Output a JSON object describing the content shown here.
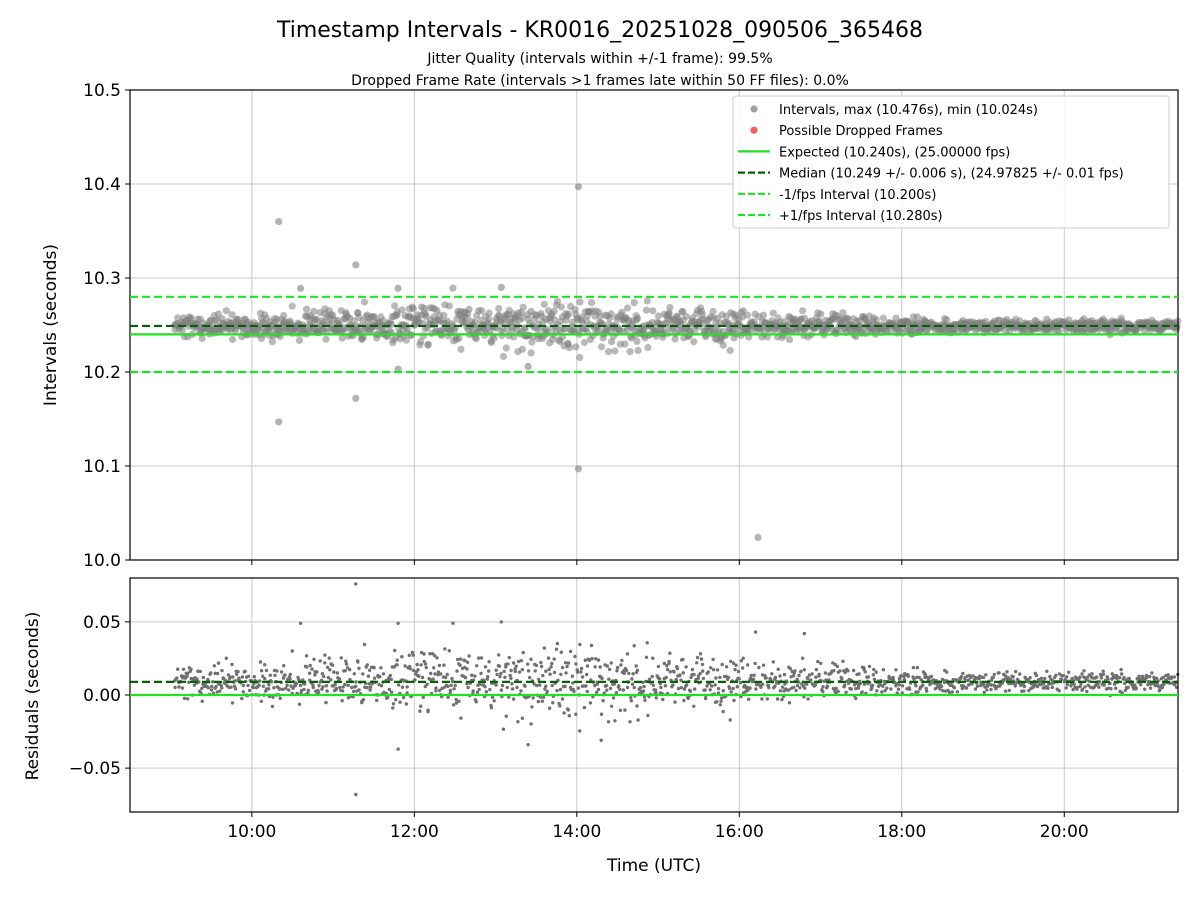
{
  "chart_data": [
    {
      "type": "scatter",
      "title": "Timestamp Intervals - KR0016_20251028_090506_365468",
      "subtitle_lines": [
        "Jitter Quality (intervals within +/-1 frame): 99.5%",
        "Dropped Frame Rate (intervals >1 frames late within 50 FF files): 0.0%"
      ],
      "xlabel": "",
      "ylabel": "Intervals (seconds)",
      "xlim_hours": [
        8.5,
        21.4
      ],
      "ylim": [
        10.0,
        10.5
      ],
      "x_ticks_hours": [
        10,
        12,
        14,
        16,
        18,
        20
      ],
      "x_tick_labels": [
        "10:00",
        "12:00",
        "14:00",
        "16:00",
        "18:00",
        "20:00"
      ],
      "y_ticks": [
        10.0,
        10.1,
        10.2,
        10.3,
        10.4,
        10.5
      ],
      "y_tick_labels": [
        "10.0",
        "10.1",
        "10.2",
        "10.3",
        "10.4",
        "10.5"
      ],
      "grid": true,
      "legend_position": "top-right",
      "data_span_hours": [
        9.05,
        21.4
      ],
      "intervals_max": 10.476,
      "intervals_min": 10.024,
      "expected_interval": 10.24,
      "expected_fps": 25.0,
      "median_interval": 10.249,
      "median_interval_err": 0.006,
      "median_fps": 24.97825,
      "lower_interval": 10.2,
      "upper_interval": 10.28,
      "colors": {
        "points": "#808080",
        "dropped": "#f04040",
        "expected": "#22e022",
        "median": "#006400",
        "bounds": "#22e022"
      },
      "outliers": [
        {
          "x": 10.33,
          "y": 10.36
        },
        {
          "x": 10.33,
          "y": 10.147
        },
        {
          "x": 11.28,
          "y": 10.314
        },
        {
          "x": 11.28,
          "y": 10.172
        },
        {
          "x": 14.02,
          "y": 10.397
        },
        {
          "x": 14.02,
          "y": 10.097
        },
        {
          "x": 16.23,
          "y": 10.024
        },
        {
          "x": 11.8,
          "y": 10.289
        },
        {
          "x": 13.07,
          "y": 10.29
        },
        {
          "x": 10.6,
          "y": 10.289
        },
        {
          "x": 11.8,
          "y": 10.203
        },
        {
          "x": 13.4,
          "y": 10.206
        }
      ],
      "legend": [
        {
          "kind": "dot",
          "color": "#a0a0a0",
          "label": "Intervals, max (10.476s), min (10.024s)"
        },
        {
          "kind": "dot",
          "color": "#f06060",
          "label": "Possible Dropped Frames"
        },
        {
          "kind": "solid",
          "color": "#22e022",
          "label": "Expected (10.240s), (25.00000 fps)"
        },
        {
          "kind": "dashed",
          "color": "#006400",
          "label": "Median (10.249 +/- 0.006 s), (24.97825 +/- 0.01 fps)"
        },
        {
          "kind": "dashed",
          "color": "#22e022",
          "label": "-1/fps Interval (10.200s)"
        },
        {
          "kind": "dashed",
          "color": "#22e022",
          "label": "+1/fps Interval (10.280s)"
        }
      ]
    },
    {
      "type": "scatter",
      "title": "",
      "xlabel": "Time (UTC)",
      "ylabel": "Residuals (seconds)",
      "xlim_hours": [
        8.5,
        21.4
      ],
      "ylim": [
        -0.08,
        0.08
      ],
      "x_ticks_hours": [
        10,
        12,
        14,
        16,
        18,
        20
      ],
      "x_tick_labels": [
        "10:00",
        "12:00",
        "14:00",
        "16:00",
        "18:00",
        "20:00"
      ],
      "y_ticks": [
        0.05,
        0.0,
        -0.05
      ],
      "y_tick_labels": [
        "0.05",
        "0.00",
        "−0.05"
      ],
      "grid": true,
      "zero_line": 0.0,
      "median_residual": 0.009,
      "colors": {
        "points": "#707070",
        "zero": "#22e022",
        "median": "#006400"
      },
      "outliers": [
        {
          "x": 11.28,
          "y": 0.076
        },
        {
          "x": 11.28,
          "y": -0.068
        },
        {
          "x": 10.6,
          "y": 0.049
        },
        {
          "x": 11.8,
          "y": 0.049
        },
        {
          "x": 13.07,
          "y": 0.05
        },
        {
          "x": 11.8,
          "y": -0.037
        },
        {
          "x": 13.4,
          "y": -0.034
        },
        {
          "x": 14.3,
          "y": -0.031
        },
        {
          "x": 16.8,
          "y": 0.042
        },
        {
          "x": 16.2,
          "y": 0.043
        }
      ]
    }
  ]
}
